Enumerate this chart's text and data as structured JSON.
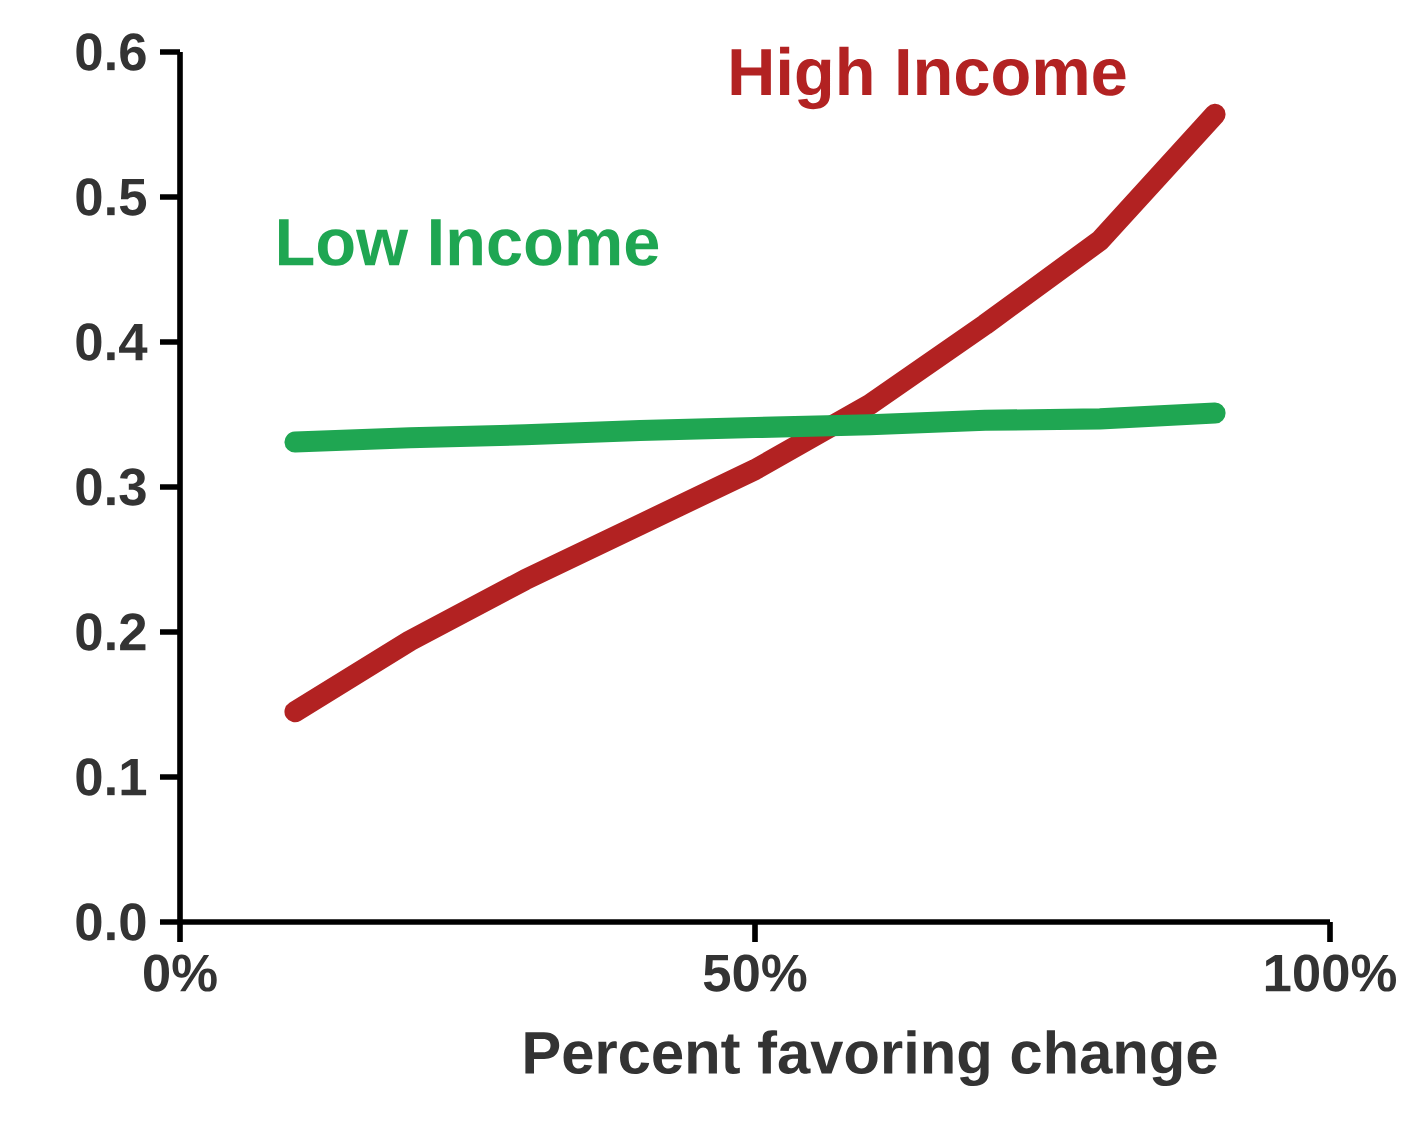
{
  "chart_data": {
    "type": "line",
    "xlabel": "Percent favoring change",
    "x": [
      10,
      20,
      30,
      40,
      50,
      60,
      70,
      80,
      90
    ],
    "series": [
      {
        "name": "High Income",
        "color": "#b22222",
        "values": [
          0.145,
          0.194,
          0.236,
          0.274,
          0.312,
          0.357,
          0.412,
          0.47,
          0.557
        ]
      },
      {
        "name": "Low Income",
        "color": "#1fa652",
        "values": [
          0.331,
          0.334,
          0.336,
          0.339,
          0.341,
          0.343,
          0.346,
          0.347,
          0.351
        ]
      }
    ],
    "xlim": [
      0,
      100
    ],
    "ylim": [
      0,
      0.6
    ],
    "xticks": [
      {
        "value": 0,
        "label": "0%"
      },
      {
        "value": 50,
        "label": "50%"
      },
      {
        "value": 100,
        "label": "100%"
      }
    ],
    "yticks": [
      {
        "value": 0,
        "label": "0.0"
      },
      0.1,
      0.2,
      0.3,
      0.4,
      0.5,
      0.6
    ],
    "grid": false,
    "legend": false,
    "marker": "none",
    "line_style": "solid"
  }
}
